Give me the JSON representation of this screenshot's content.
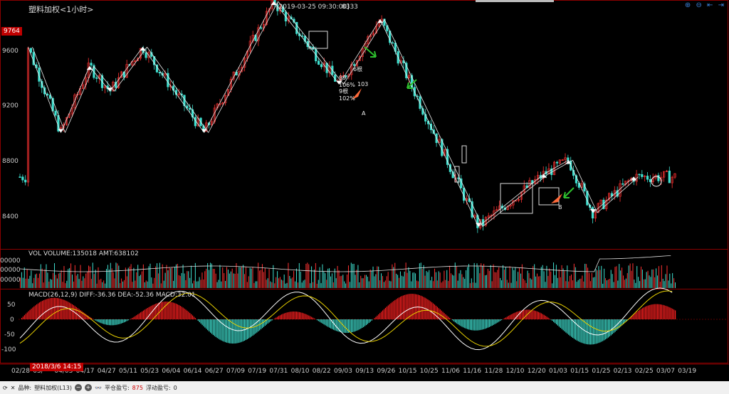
{
  "window": {
    "title": "塑料加权<1小时>",
    "cursor_time": "[2019-03-25 09:30:00]",
    "cursor_value": "8333"
  },
  "toolbar": {
    "icons": [
      "zoom-in-icon",
      "zoom-out-icon",
      "scroll-left-icon",
      "scroll-right-icon"
    ],
    "glyphs": [
      "⊕",
      "⊖",
      "⇤",
      "⇥"
    ]
  },
  "price_axis": {
    "ticks": [
      "9600",
      "9200",
      "8800",
      "8400"
    ],
    "current": "9764"
  },
  "volume_panel": {
    "label": "VOL  VOLUME:135018 AMT:638102",
    "ticks": [
      "00000",
      "00000",
      "00000"
    ]
  },
  "macd_panel": {
    "label": "MACD(26,12,9)  DIFF:-36.36 DEA:-52.36 MACD:32.01",
    "ticks": [
      "50",
      "0",
      "-50",
      "-100"
    ]
  },
  "annotations": {
    "a": "A",
    "b": "B",
    "box_texts": [
      "6根",
      "99",
      "106%",
      "9根",
      "103",
      "102%"
    ]
  },
  "date_axis": {
    "labels": [
      "02/28",
      "03/",
      "04/03",
      "04/17",
      "04/27",
      "05/11",
      "05/23",
      "06/04",
      "06/14",
      "06/27",
      "07/09",
      "07/19",
      "07/31",
      "08/10",
      "08/22",
      "09/03",
      "09/13",
      "09/26",
      "10/15",
      "10/25",
      "11/06",
      "11/16",
      "11/28",
      "12/10",
      "12/20",
      "01/03",
      "01/15",
      "01/25",
      "02/13",
      "02/25",
      "03/07",
      "03/19"
    ],
    "cursor_date": "2018/3/6 14:15"
  },
  "statusbar": {
    "product_label": "品种:",
    "product": "塑料加权(L13)",
    "profit_label": "平仓盈亏:",
    "profit": "875",
    "float_label": "浮动盈亏:",
    "float": "0"
  },
  "chart_data": {
    "type": "candlestick",
    "price_ticks": [
      9600,
      9200,
      8800,
      8400
    ],
    "zigzag_points": [
      [
        2,
        9620
      ],
      [
        10,
        9000
      ],
      [
        17,
        9480
      ],
      [
        22,
        9300
      ],
      [
        30,
        9620
      ],
      [
        45,
        9000
      ],
      [
        62,
        9950
      ],
      [
        78,
        9350
      ],
      [
        88,
        9820
      ],
      [
        112,
        8320
      ],
      [
        128,
        8700
      ],
      [
        134,
        8800
      ],
      [
        140,
        8420
      ],
      [
        150,
        8680
      ]
    ],
    "macd_ticks": [
      50,
      0,
      -50,
      -100
    ]
  }
}
